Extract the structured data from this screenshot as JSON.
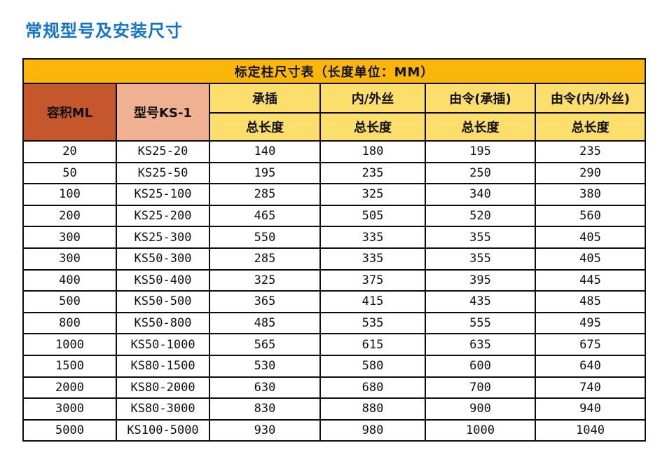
{
  "page": {
    "title": "常规型号及安装尺寸"
  },
  "colors": {
    "title_blue": "#1273d0",
    "caption_gold": "#fab70a",
    "volume_header_orange": "#c5572b",
    "model_header_salmon": "#f0b193",
    "spec_header_yellow": "#fcde6c",
    "border_black": "#0d0d0d",
    "text_black": "#111111"
  },
  "table": {
    "caption": "标定柱尺寸表（长度单位：MM）",
    "volume_header": "容积ML",
    "model_header": "型号KS-1",
    "spec_headers": [
      "承插",
      "内/外丝",
      "由令(承插)",
      "由令(内/外丝)"
    ],
    "subheader": "总长度",
    "rows": [
      [
        "20",
        "KS25-20",
        "140",
        "180",
        "195",
        "235"
      ],
      [
        "50",
        "KS25-50",
        "195",
        "235",
        "250",
        "290"
      ],
      [
        "100",
        "KS25-100",
        "285",
        "325",
        "340",
        "380"
      ],
      [
        "200",
        "KS25-200",
        "465",
        "505",
        "520",
        "560"
      ],
      [
        "300",
        "KS25-300",
        "550",
        "335",
        "355",
        "405"
      ],
      [
        "300",
        "KS50-300",
        "285",
        "335",
        "355",
        "405"
      ],
      [
        "400",
        "KS50-400",
        "325",
        "375",
        "395",
        "445"
      ],
      [
        "500",
        "KS50-500",
        "365",
        "415",
        "435",
        "485"
      ],
      [
        "800",
        "KS50-800",
        "485",
        "535",
        "555",
        "495"
      ],
      [
        "1000",
        "KS50-1000",
        "565",
        "615",
        "635",
        "675"
      ],
      [
        "1500",
        "KS80-1500",
        "530",
        "580",
        "600",
        "640"
      ],
      [
        "2000",
        "KS80-2000",
        "630",
        "680",
        "700",
        "740"
      ],
      [
        "3000",
        "KS80-3000",
        "830",
        "880",
        "900",
        "940"
      ],
      [
        "5000",
        "KS100-5000",
        "930",
        "980",
        "1000",
        "1040"
      ]
    ]
  }
}
